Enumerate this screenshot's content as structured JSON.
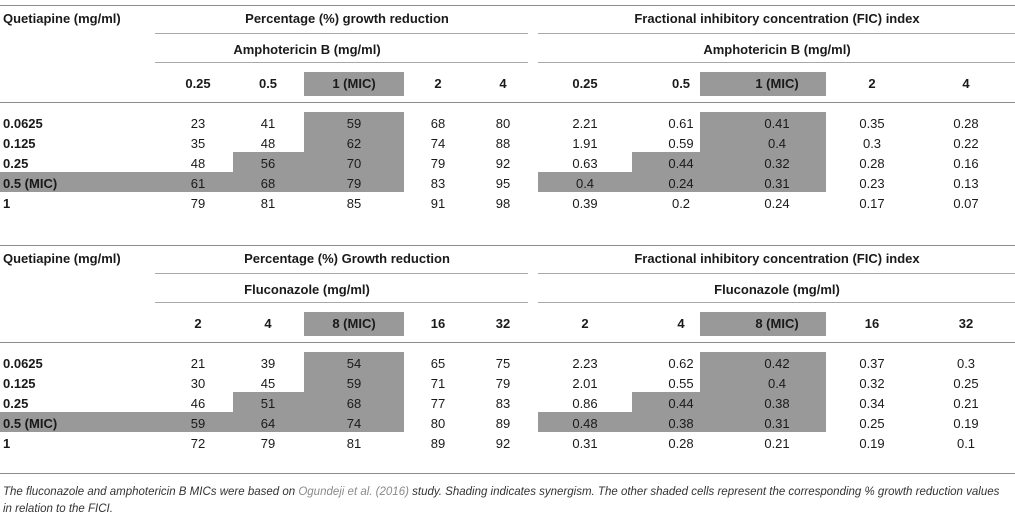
{
  "table": {
    "sections": [
      {
        "row_header": "Quetiapine (mg/ml)",
        "left_group": "Percentage (%) growth reduction",
        "right_group": "Fractional inhibitory concentration (FIC) index",
        "drug": "Amphotericin B (mg/ml)",
        "concentrations": [
          "0.25",
          "0.5",
          "1 (MIC)",
          "2",
          "4"
        ],
        "rows": [
          {
            "label": "0.0625",
            "growth": [
              "23",
              "41",
              "59",
              "68",
              "80"
            ],
            "fic": [
              "2.21",
              "0.61",
              "0.41",
              "0.35",
              "0.28"
            ]
          },
          {
            "label": "0.125",
            "growth": [
              "35",
              "48",
              "62",
              "74",
              "88"
            ],
            "fic": [
              "1.91",
              "0.59",
              "0.4",
              "0.3",
              "0.22"
            ]
          },
          {
            "label": "0.25",
            "growth": [
              "48",
              "56",
              "70",
              "79",
              "92"
            ],
            "fic": [
              "0.63",
              "0.44",
              "0.32",
              "0.28",
              "0.16"
            ]
          },
          {
            "label": "0.5 (MIC)",
            "growth": [
              "61",
              "68",
              "79",
              "83",
              "95"
            ],
            "fic": [
              "0.4",
              "0.24",
              "0.31",
              "0.23",
              "0.13"
            ]
          },
          {
            "label": "1",
            "growth": [
              "79",
              "81",
              "85",
              "91",
              "98"
            ],
            "fic": [
              "0.39",
              "0.2",
              "0.24",
              "0.17",
              "0.07"
            ]
          }
        ]
      },
      {
        "row_header": "Quetiapine (mg/ml)",
        "left_group": "Percentage (%) Growth reduction",
        "right_group": "Fractional inhibitory concentration (FIC) index",
        "drug": "Fluconazole (mg/ml)",
        "concentrations": [
          "2",
          "4",
          "8 (MIC)",
          "16",
          "32"
        ],
        "rows": [
          {
            "label": "0.0625",
            "growth": [
              "21",
              "39",
              "54",
              "65",
              "75"
            ],
            "fic": [
              "2.23",
              "0.62",
              "0.42",
              "0.37",
              "0.3"
            ]
          },
          {
            "label": "0.125",
            "growth": [
              "30",
              "45",
              "59",
              "71",
              "79"
            ],
            "fic": [
              "2.01",
              "0.55",
              "0.4",
              "0.32",
              "0.25"
            ]
          },
          {
            "label": "0.25",
            "growth": [
              "46",
              "51",
              "68",
              "77",
              "83"
            ],
            "fic": [
              "0.86",
              "0.44",
              "0.38",
              "0.34",
              "0.21"
            ]
          },
          {
            "label": "0.5 (MIC)",
            "growth": [
              "59",
              "64",
              "74",
              "80",
              "89"
            ],
            "fic": [
              "0.48",
              "0.38",
              "0.31",
              "0.25",
              "0.19"
            ]
          },
          {
            "label": "1",
            "growth": [
              "72",
              "79",
              "81",
              "89",
              "92"
            ],
            "fic": [
              "0.31",
              "0.28",
              "0.21",
              "0.19",
              "0.1"
            ]
          }
        ]
      }
    ]
  },
  "footnote": {
    "before": "The fluconazole and amphotericin B MICs were based on ",
    "citation": "Ogundeji et al. (2016)",
    "after": " study. Shading indicates synergism. The other shaded cells represent the corresponding % growth reduction values in relation to the FICI."
  },
  "colors": {
    "shade": "#999999",
    "rule": "#8c8c8c",
    "citation": "#8a8a8a"
  }
}
